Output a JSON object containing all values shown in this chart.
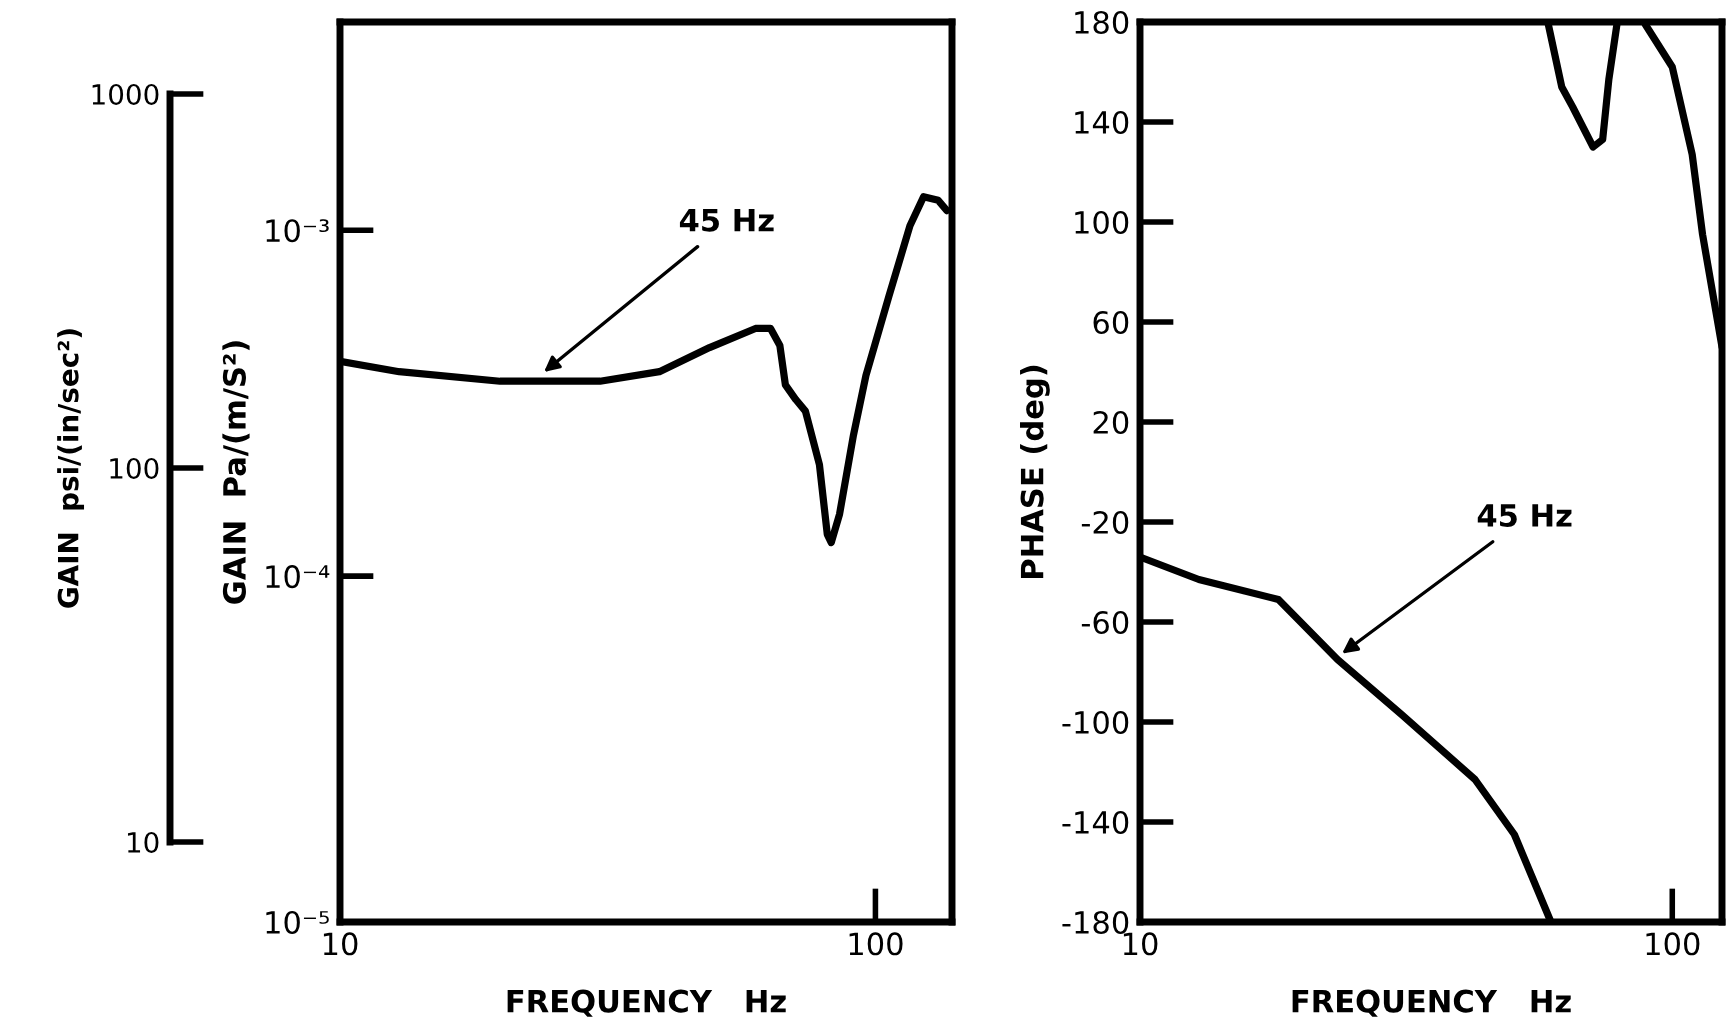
{
  "chart_data": [
    {
      "type": "other",
      "ylabel": "GAIN  psi/(in/sec²)",
      "annotations": [
        "1000",
        "100",
        "10"
      ]
    },
    {
      "type": "line",
      "xlabel": "FREQUENCY   Hz",
      "ylabel": "GAIN  Pa/(m/S²)",
      "log": "xy",
      "grid": false,
      "xlim": [
        10,
        139
      ],
      "xticks": [
        10,
        100
      ],
      "ylim": [
        1e-05,
        0.004
      ],
      "yticks": [
        {
          "value": 1e-05,
          "label": "10⁻⁵"
        },
        {
          "value": 0.0001,
          "label": "10⁻⁴"
        },
        {
          "value": 0.001,
          "label": "10⁻³"
        }
      ],
      "series": [
        {
          "color": "#000000",
          "x": [
            10,
            12.9,
            19.9,
            30.6,
            39.5,
            49,
            59.7,
            63.7,
            66.3,
            67.9,
            71,
            74,
            78.6,
            81.3,
            82.7,
            85.7,
            91,
            96,
            106,
            116,
            123,
            131,
            136
          ],
          "values": [
            0.000418,
            0.00039,
            0.000366,
            0.000366,
            0.00039,
            0.000458,
            0.00052,
            0.00052,
            0.000464,
            0.000357,
            0.000324,
            0.0003,
            0.00021,
            0.000132,
            0.000125,
            0.000151,
            0.000256,
            0.00038,
            0.000645,
            0.00103,
            0.00125,
            0.00122,
            0.00114
          ]
        }
      ],
      "annotations": [
        {
          "text": "45 Hz",
          "x": 23.6,
          "y": 0.00038
        }
      ]
    },
    {
      "type": "line",
      "xlabel": "FREQUENCY   Hz",
      "ylabel": "PHASE (deg)",
      "log": "x",
      "grid": false,
      "xlim": [
        10,
        124
      ],
      "xticks": [
        10,
        100
      ],
      "ylim": [
        -180,
        180
      ],
      "yticks": [
        -180,
        -140,
        -100,
        -60,
        -20,
        20,
        60,
        100,
        140,
        180
      ],
      "series": [
        {
          "color": "#000000",
          "x": [
            10,
            12.9,
            18.2,
            23.5,
            31,
            42.6,
            50.5,
            58.9
          ],
          "values": [
            -34,
            -43,
            -51,
            -75,
            -97,
            -123,
            -145,
            -179
          ]
        },
        {
          "color": "#000000",
          "x": [
            58.5,
            62,
            65,
            71,
            74,
            76,
            78.7
          ],
          "values": [
            179,
            154,
            146,
            130,
            133,
            157,
            179
          ]
        },
        {
          "color": "#000000",
          "x": [
            89,
            100,
            109,
            114,
            124
          ],
          "values": [
            179,
            162,
            127,
            95,
            50
          ]
        }
      ],
      "annotations": [
        {
          "text": "45 Hz",
          "x": 23.5,
          "y": -74
        }
      ]
    }
  ]
}
